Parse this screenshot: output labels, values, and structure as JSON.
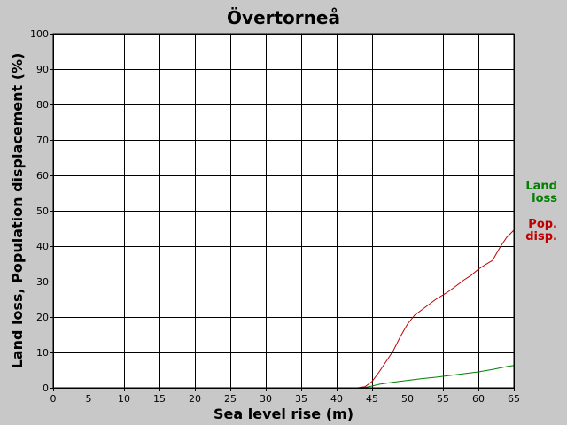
{
  "chart_data": {
    "type": "line",
    "title": "Övertorneå",
    "xlabel": "Sea level rise (m)",
    "ylabel": "Land loss, Population displacement (%)",
    "xlim": [
      0,
      65
    ],
    "ylim": [
      0,
      100
    ],
    "xticks": [
      0,
      5,
      10,
      15,
      20,
      25,
      30,
      35,
      40,
      45,
      50,
      55,
      60,
      65
    ],
    "yticks": [
      0,
      10,
      20,
      30,
      40,
      50,
      60,
      70,
      80,
      90,
      100
    ],
    "grid": true,
    "legend_position": "right",
    "series": [
      {
        "name": "Land loss",
        "legend_lines": [
          "Land",
          "loss"
        ],
        "color": "#008000",
        "x": [
          0,
          42,
          43,
          44,
          45,
          46,
          48,
          50,
          52,
          54,
          56,
          58,
          60,
          62,
          63,
          64,
          65
        ],
        "y": [
          0,
          0,
          0,
          0.1,
          0.5,
          1.0,
          1.6,
          2.1,
          2.6,
          3.0,
          3.5,
          4.0,
          4.5,
          5.2,
          5.6,
          6.0,
          6.3
        ]
      },
      {
        "name": "Pop. disp.",
        "legend_lines": [
          "Pop.",
          "disp."
        ],
        "color": "#c00000",
        "x": [
          0,
          42,
          43,
          44,
          45,
          46,
          47,
          48,
          49,
          50,
          51,
          52,
          53,
          54,
          55,
          56,
          57,
          58,
          59,
          60,
          61,
          62,
          63,
          64,
          65
        ],
        "y": [
          0,
          0,
          0,
          0.3,
          1.8,
          4.5,
          7.5,
          10.5,
          14.5,
          18.0,
          20.5,
          22.0,
          23.5,
          25.0,
          26.2,
          27.5,
          29.0,
          30.5,
          31.8,
          33.5,
          34.8,
          36.0,
          39.5,
          42.5,
          44.5
        ]
      }
    ]
  }
}
